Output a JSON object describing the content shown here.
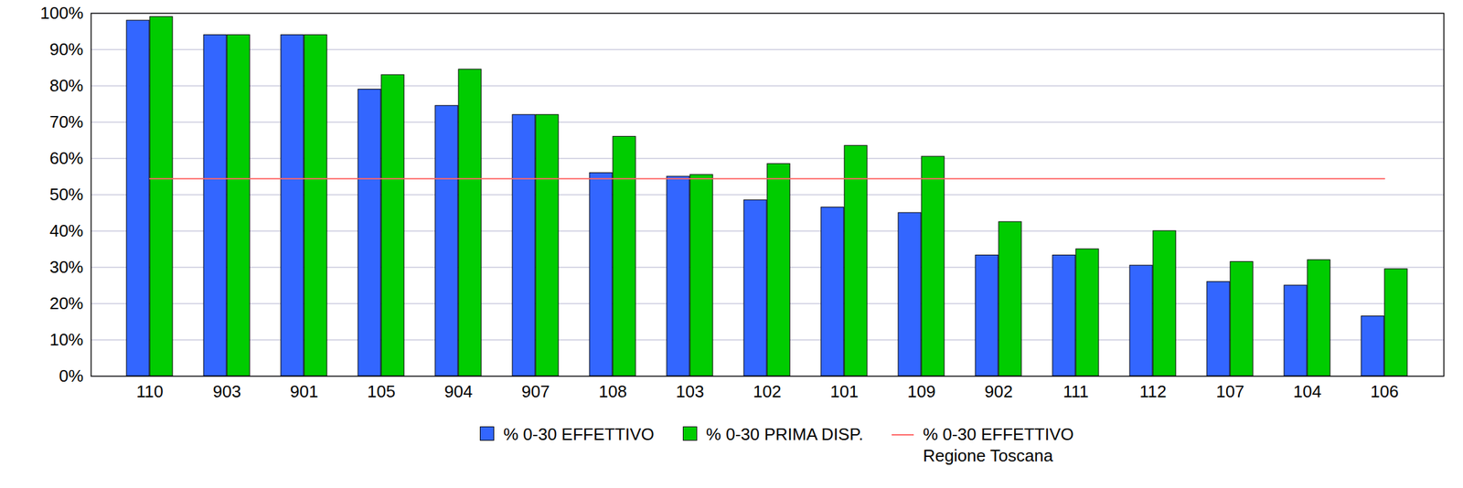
{
  "chart_data": {
    "type": "bar",
    "categories": [
      "110",
      "903",
      "901",
      "105",
      "904",
      "907",
      "108",
      "103",
      "102",
      "101",
      "109",
      "902",
      "111",
      "112",
      "107",
      "104",
      "106"
    ],
    "series": [
      {
        "name": "% 0-30 EFFETTIVO",
        "color": "#3366ff",
        "type": "bar",
        "values": [
          98,
          94,
          94,
          79,
          74.5,
          72,
          56,
          55,
          48.5,
          46.5,
          45,
          33.3,
          33.3,
          30.5,
          26,
          25,
          16.5
        ]
      },
      {
        "name": "% 0-30 PRIMA DISP.",
        "color": "#00cc00",
        "type": "bar",
        "values": [
          99,
          94,
          94,
          83,
          84.5,
          72,
          66,
          55.5,
          58.5,
          63.5,
          60.5,
          42.5,
          35,
          40,
          31.5,
          32,
          29.5
        ]
      },
      {
        "name": "% 0-30 EFFETTIVO\nRegione Toscana",
        "color": "#ff6666",
        "type": "line",
        "values": [
          54.4,
          54.4,
          54.4,
          54.4,
          54.4,
          54.4,
          54.4,
          54.4,
          54.4,
          54.4,
          54.4,
          54.4,
          54.4,
          54.4,
          54.4,
          54.4,
          54.4
        ]
      }
    ],
    "ylim": [
      0,
      100
    ],
    "yticks": [
      {
        "value": 0,
        "label": "0%"
      },
      {
        "value": 10,
        "label": "10%"
      },
      {
        "value": 20,
        "label": "20%"
      },
      {
        "value": 30,
        "label": "30%"
      },
      {
        "value": 40,
        "label": "40%"
      },
      {
        "value": 50,
        "label": "50%"
      },
      {
        "value": 60,
        "label": "60%"
      },
      {
        "value": 70,
        "label": "70%"
      },
      {
        "value": 80,
        "label": "80%"
      },
      {
        "value": 90,
        "label": "90%"
      },
      {
        "value": 100,
        "label": "100%"
      }
    ],
    "grid": true,
    "legend": "bottom"
  }
}
